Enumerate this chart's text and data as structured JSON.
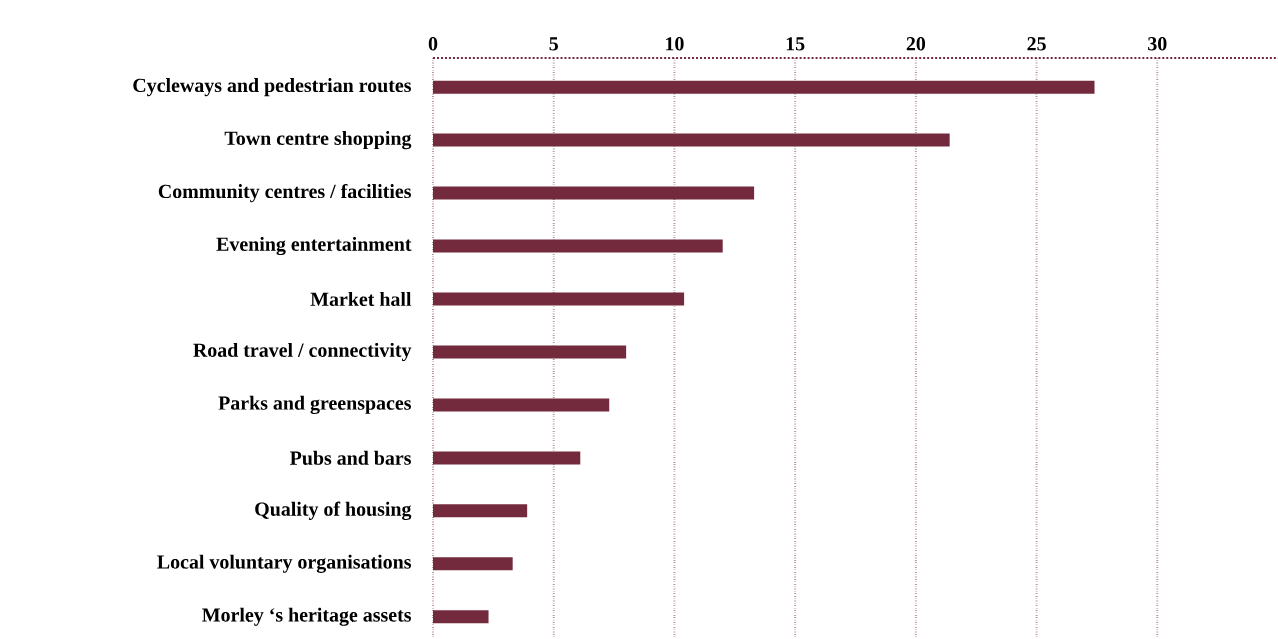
{
  "chart_data": {
    "type": "bar",
    "orientation": "horizontal",
    "categories": [
      "Cycleways and pedestrian routes",
      "Town centre shopping",
      "Community centres / facilities",
      "Evening entertainment",
      "Market hall",
      "Road travel / connectivity",
      "Parks and greenspaces",
      "Pubs and bars",
      "Quality of housing",
      "Local voluntary organisations",
      "Morley ‘s heritage assets"
    ],
    "values": [
      27.4,
      21.4,
      13.3,
      12.0,
      10.4,
      8.0,
      7.3,
      6.1,
      3.9,
      3.3,
      2.3
    ],
    "color": "#722a3c",
    "xlim": [
      0,
      35
    ],
    "xticks": [
      0,
      5,
      10,
      15,
      20,
      25,
      30
    ],
    "grid": "x"
  }
}
